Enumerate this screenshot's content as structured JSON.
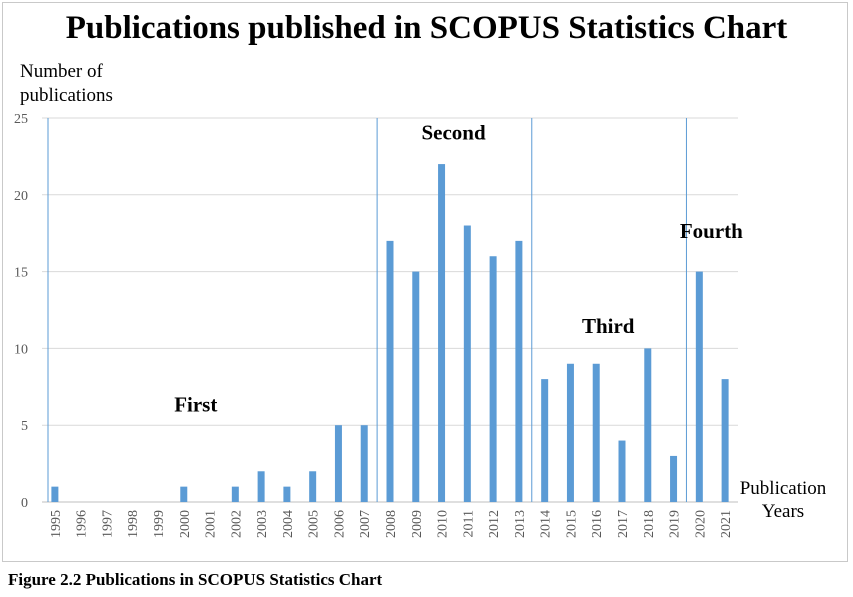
{
  "chart_data": {
    "type": "bar",
    "title": "Publications published in SCOPUS Statistics Chart",
    "ylabel": "Number of publications",
    "xlabel": "Publication Years",
    "ylim": [
      0,
      25
    ],
    "yticks": [
      0,
      5,
      10,
      15,
      20,
      25
    ],
    "categories": [
      "1995",
      "1996",
      "1997",
      "1998",
      "1999",
      "2000",
      "2001",
      "2002",
      "2003",
      "2004",
      "2005",
      "2006",
      "2007",
      "2008",
      "2009",
      "2010",
      "2011",
      "2012",
      "2013",
      "2014",
      "2015",
      "2016",
      "2017",
      "2018",
      "2019",
      "2020",
      "2021"
    ],
    "values": [
      1,
      0,
      0,
      0,
      0,
      1,
      0,
      1,
      2,
      1,
      2,
      5,
      5,
      17,
      15,
      22,
      18,
      16,
      17,
      8,
      9,
      9,
      4,
      10,
      3,
      15,
      8
    ],
    "bar_color": "#5b9bd5",
    "grid": true,
    "dividers_after": [
      "1995",
      "2007",
      "2013",
      "2019"
    ],
    "regions": [
      {
        "label": "First",
        "anchor_category": "2000",
        "anchor_value": 5.9
      },
      {
        "label": "Second",
        "anchor_category": "2010",
        "anchor_value": 23.6
      },
      {
        "label": "Third",
        "anchor_category": "2016",
        "anchor_value": 11.0
      },
      {
        "label": "Fourth",
        "anchor_category": "2020",
        "anchor_value": 17.2
      }
    ]
  },
  "caption": "Figure 2.2 Publications in SCOPUS Statistics Chart"
}
